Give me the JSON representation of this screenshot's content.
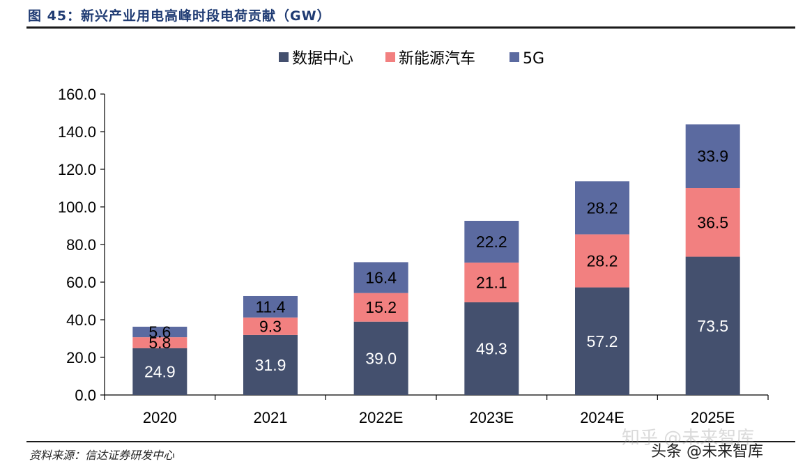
{
  "header": {
    "figure_title": "图 45：新兴产业用电高峰时段电荷贡献（GW）"
  },
  "footer": {
    "source": "资料来源：信达证券研发中心",
    "watermark": "头条 @未来智库",
    "watermark_ghost": "知乎 @未来智库"
  },
  "colors": {
    "data_center": "#44506e",
    "nev": "#f28080",
    "5g": "#5b6aa0",
    "rule": "#1a1a1a",
    "title": "#1f3b73"
  },
  "chart_data": {
    "type": "bar",
    "stacked": true,
    "title": "",
    "xlabel": "",
    "ylabel": "",
    "ylim": [
      0,
      160
    ],
    "yticks": [
      "0.0",
      "20.0",
      "40.0",
      "60.0",
      "80.0",
      "100.0",
      "120.0",
      "140.0",
      "160.0"
    ],
    "grid": false,
    "legend_position": "top-center",
    "categories": [
      "2020",
      "2021",
      "2022E",
      "2023E",
      "2024E",
      "2025E"
    ],
    "series": [
      {
        "name": "数据中心",
        "color_key": "data_center",
        "values": [
          24.9,
          31.9,
          39.0,
          49.3,
          57.2,
          73.5
        ],
        "labels": [
          "24.9",
          "31.9",
          "39.0",
          "49.3",
          "57.2",
          "73.5"
        ],
        "label_color": "#ffffff"
      },
      {
        "name": "新能源汽车",
        "color_key": "nev",
        "values": [
          5.8,
          9.3,
          15.2,
          21.1,
          28.2,
          36.5
        ],
        "labels": [
          "5.8",
          "9.3",
          "15.2",
          "21.1",
          "28.2",
          "36.5"
        ],
        "label_color": "#000000"
      },
      {
        "name": "5G",
        "color_key": "5g",
        "values": [
          5.6,
          11.4,
          16.4,
          22.2,
          28.2,
          33.9
        ],
        "labels": [
          "5.6",
          "11.4",
          "16.4",
          "22.2",
          "28.2",
          "33.9"
        ],
        "label_color": "#000000"
      }
    ]
  }
}
